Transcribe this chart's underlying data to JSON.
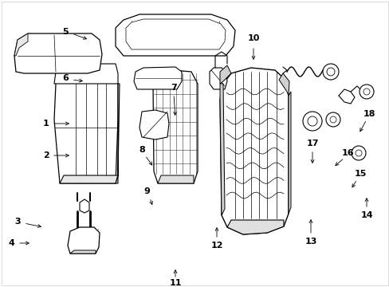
{
  "bg_color": "#ffffff",
  "line_color": "#1a1a1a",
  "label_color": "#000000",
  "fig_width": 4.89,
  "fig_height": 3.6,
  "dpi": 100,
  "border_color": "#aaaaaa"
}
